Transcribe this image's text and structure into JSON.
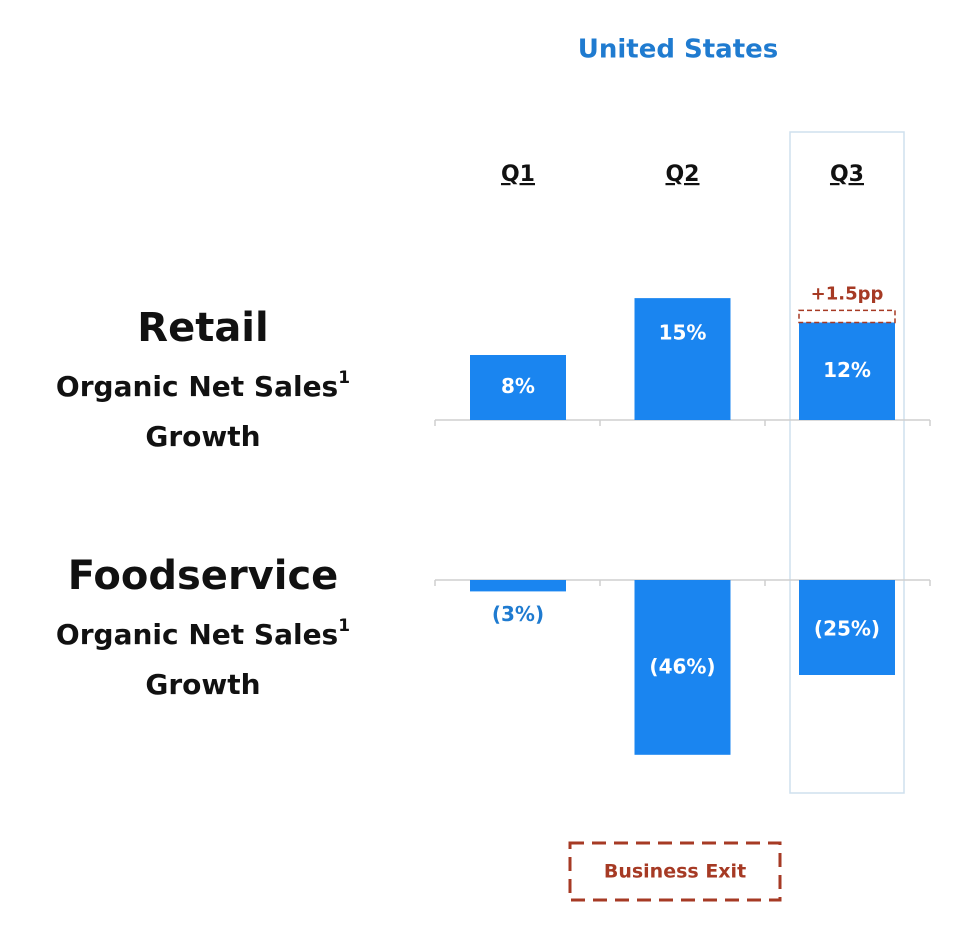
{
  "chart_data": {
    "type": "bar",
    "title": "United States",
    "categories": [
      "Q1",
      "Q2",
      "Q3"
    ],
    "label_lines": [
      "Organic Net Sales",
      "Growth"
    ],
    "footnote": "1",
    "color": "#1a85f0",
    "series": [
      {
        "name": "Retail",
        "values": [
          8,
          15,
          12
        ],
        "value_labels": [
          "8%",
          "15%",
          "12%"
        ],
        "ylim": [
          0,
          16
        ],
        "annotation": {
          "category": 2,
          "value": 1.5,
          "label": "+1.5pp"
        }
      },
      {
        "name": "Foodservice",
        "values": [
          -3,
          -46,
          -25
        ],
        "value_labels": [
          "(3%)",
          "(46%)",
          "(25%)"
        ],
        "ylim": [
          -50,
          0
        ]
      }
    ],
    "note": "Business Exit"
  }
}
